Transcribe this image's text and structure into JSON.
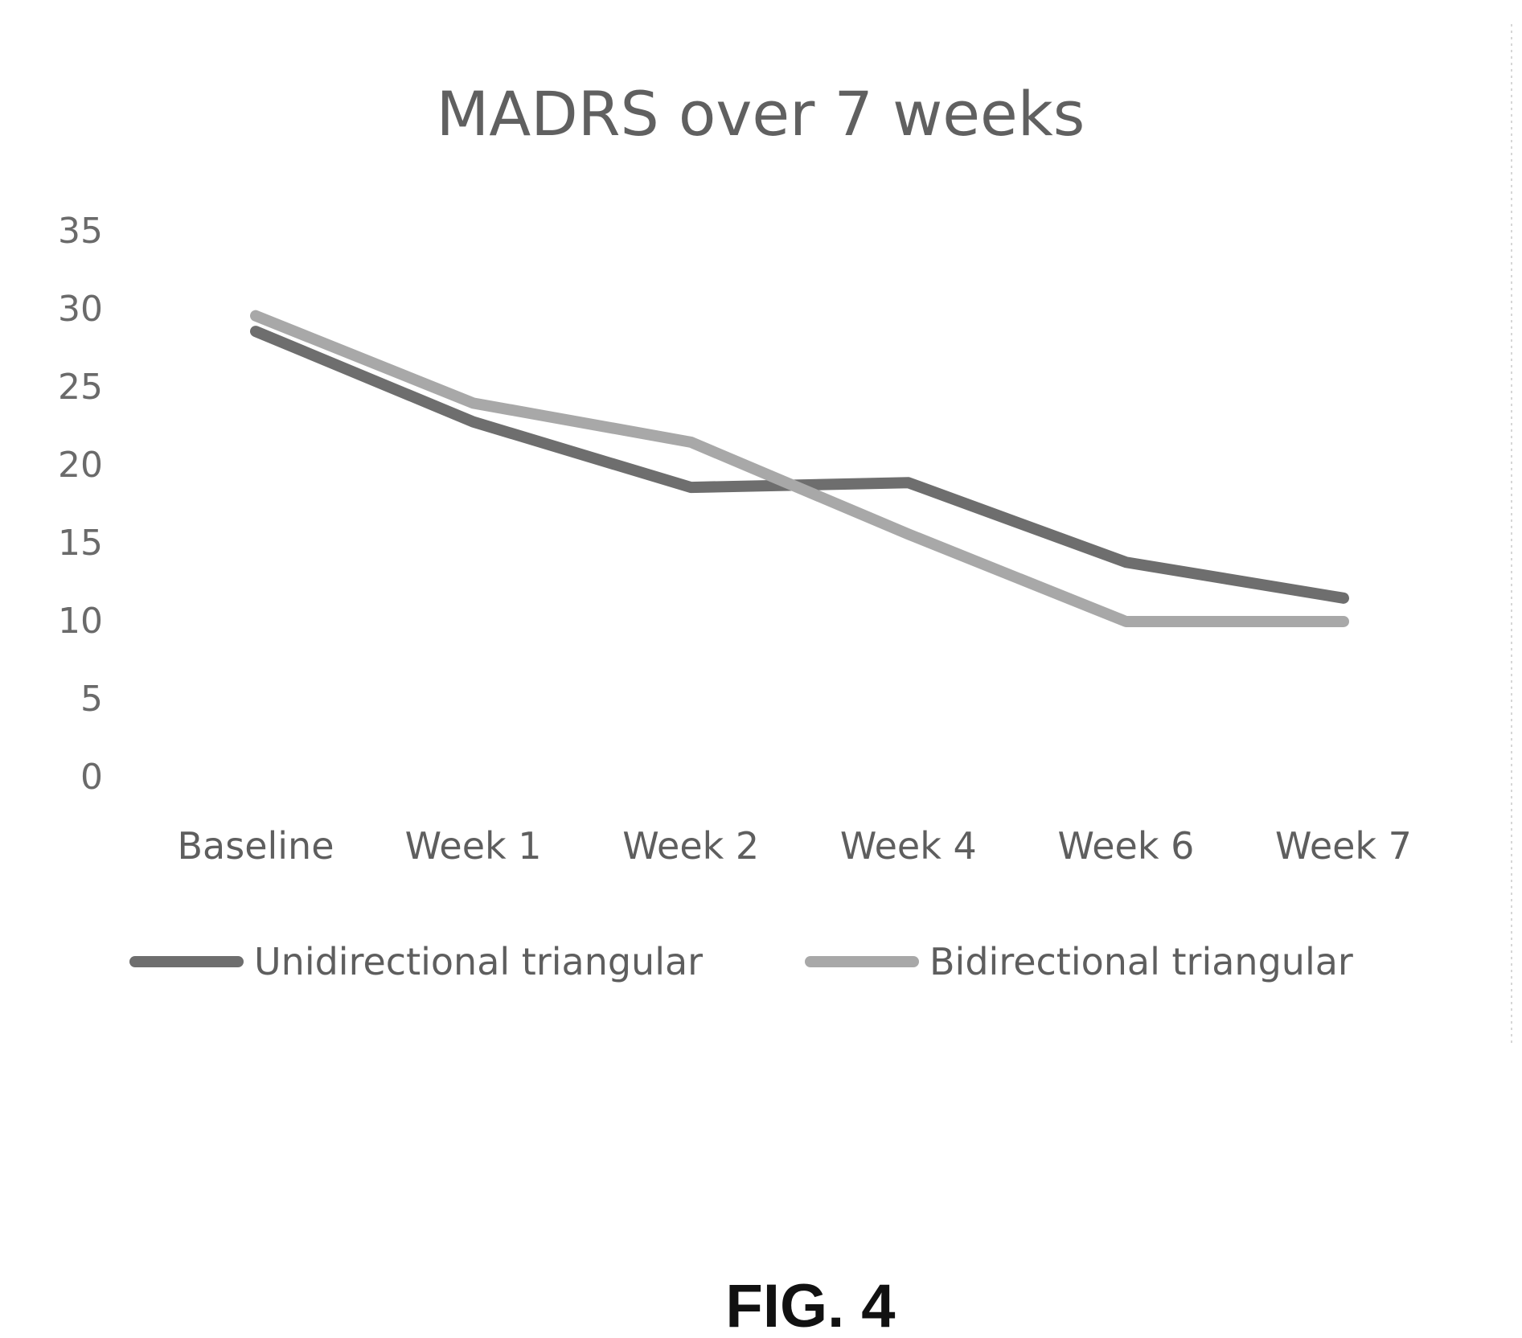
{
  "chart_data": {
    "type": "line",
    "title": "MADRS over 7 weeks",
    "xlabel": "",
    "ylabel": "",
    "categories": [
      "Baseline",
      "Week 1",
      "Week 2",
      "Week 4",
      "Week 6",
      "Week 7"
    ],
    "y_ticks": [
      "0",
      "5",
      "10",
      "15",
      "20",
      "25",
      "30",
      "35"
    ],
    "ylim": [
      0,
      35
    ],
    "grid": false,
    "legend_position": "bottom",
    "series": [
      {
        "name": "Unidirectional triangular",
        "values": [
          28.5,
          22.7,
          18.5,
          18.8,
          13.7,
          11.4
        ],
        "color": "#6e6e6e"
      },
      {
        "name": "Bidirectional triangular",
        "values": [
          29.5,
          23.9,
          21.4,
          15.5,
          9.9,
          9.9
        ],
        "color": "#a8a8a8"
      }
    ]
  },
  "figure": {
    "caption": "FIG. 4"
  }
}
